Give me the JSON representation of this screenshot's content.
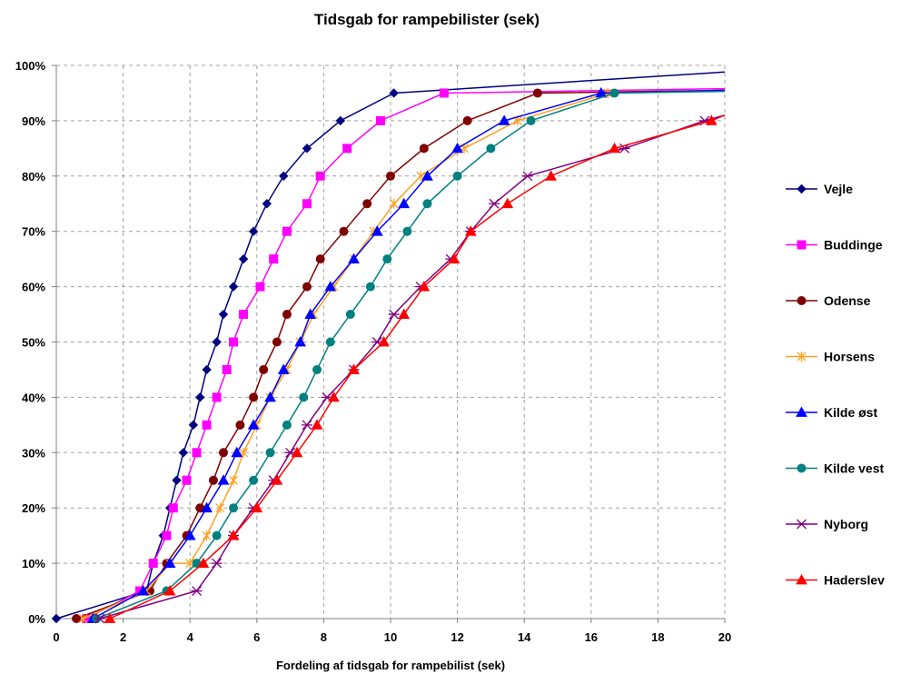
{
  "chart_data": {
    "type": "line",
    "title": "Tidsgab for rampebilister (sek)",
    "xlabel": "Fordeling af tidsgab for rampebilist (sek)",
    "ylabel": "",
    "xlim": [
      0,
      20
    ],
    "ylim": [
      0,
      100
    ],
    "x_ticks": [
      0,
      2,
      4,
      6,
      8,
      10,
      12,
      14,
      16,
      18,
      20
    ],
    "x_tick_labels": [
      "0",
      "2",
      "4",
      "6",
      "8",
      "10",
      "12",
      "14",
      "16",
      "18",
      "20"
    ],
    "y_ticks": [
      0,
      10,
      20,
      30,
      40,
      50,
      60,
      70,
      80,
      90,
      100
    ],
    "y_tick_labels": [
      "0%",
      "10%",
      "20%",
      "30%",
      "40%",
      "50%",
      "60%",
      "70%",
      "80%",
      "90%",
      "100%"
    ],
    "grid": true,
    "legend_position": "right",
    "series": [
      {
        "name": "Vejle",
        "color": "#000080",
        "marker": "diamond",
        "points": [
          [
            0,
            0
          ],
          [
            2.7,
            5
          ],
          [
            2.9,
            10
          ],
          [
            3.2,
            15
          ],
          [
            3.4,
            20
          ],
          [
            3.6,
            25
          ],
          [
            3.8,
            30
          ],
          [
            4.1,
            35
          ],
          [
            4.3,
            40
          ],
          [
            4.5,
            45
          ],
          [
            4.8,
            50
          ],
          [
            5.0,
            55
          ],
          [
            5.3,
            60
          ],
          [
            5.6,
            65
          ],
          [
            5.9,
            70
          ],
          [
            6.3,
            75
          ],
          [
            6.8,
            80
          ],
          [
            7.5,
            85
          ],
          [
            8.5,
            90
          ],
          [
            10.1,
            95
          ],
          [
            20,
            98.8
          ]
        ]
      },
      {
        "name": "Buddinge",
        "color": "#ff00ff",
        "marker": "square",
        "points": [
          [
            0.9,
            0
          ],
          [
            2.5,
            5
          ],
          [
            2.9,
            10
          ],
          [
            3.3,
            15
          ],
          [
            3.5,
            20
          ],
          [
            3.9,
            25
          ],
          [
            4.2,
            30
          ],
          [
            4.5,
            35
          ],
          [
            4.8,
            40
          ],
          [
            5.1,
            45
          ],
          [
            5.3,
            50
          ],
          [
            5.6,
            55
          ],
          [
            6.1,
            60
          ],
          [
            6.5,
            65
          ],
          [
            6.9,
            70
          ],
          [
            7.5,
            75
          ],
          [
            7.9,
            80
          ],
          [
            8.7,
            85
          ],
          [
            9.7,
            90
          ],
          [
            11.6,
            95
          ],
          [
            20,
            95.8
          ]
        ]
      },
      {
        "name": "Odense",
        "color": "#800000",
        "marker": "circle",
        "points": [
          [
            0.6,
            0
          ],
          [
            2.8,
            5
          ],
          [
            3.3,
            10
          ],
          [
            3.9,
            15
          ],
          [
            4.3,
            20
          ],
          [
            4.7,
            25
          ],
          [
            5.0,
            30
          ],
          [
            5.5,
            35
          ],
          [
            5.9,
            40
          ],
          [
            6.2,
            45
          ],
          [
            6.6,
            50
          ],
          [
            6.9,
            55
          ],
          [
            7.5,
            60
          ],
          [
            7.9,
            65
          ],
          [
            8.6,
            70
          ],
          [
            9.3,
            75
          ],
          [
            10.0,
            80
          ],
          [
            11.0,
            85
          ],
          [
            12.3,
            90
          ],
          [
            14.4,
            95
          ],
          [
            20,
            95.5
          ]
        ]
      },
      {
        "name": "Horsens",
        "color": "#ffa020",
        "marker": "star",
        "points": [
          [
            0.8,
            0
          ],
          [
            2.7,
            5
          ],
          [
            3.4,
            10
          ],
          [
            4.0,
            10
          ],
          [
            4.5,
            15
          ],
          [
            4.9,
            20
          ],
          [
            5.3,
            25
          ],
          [
            5.6,
            30
          ],
          [
            6.0,
            35
          ],
          [
            6.4,
            40
          ],
          [
            6.9,
            45
          ],
          [
            7.3,
            50
          ],
          [
            7.7,
            55
          ],
          [
            8.3,
            60
          ],
          [
            8.9,
            65
          ],
          [
            9.5,
            70
          ],
          [
            10.1,
            75
          ],
          [
            10.9,
            80
          ],
          [
            12.2,
            85
          ],
          [
            13.8,
            90
          ],
          [
            16.5,
            95
          ],
          [
            20,
            95.5
          ]
        ]
      },
      {
        "name": "Kilde øst",
        "color": "#0000ff",
        "marker": "triangle",
        "points": [
          [
            1.1,
            0
          ],
          [
            2.6,
            5
          ],
          [
            3.4,
            10
          ],
          [
            4.0,
            15
          ],
          [
            4.5,
            20
          ],
          [
            5.0,
            25
          ],
          [
            5.4,
            30
          ],
          [
            5.9,
            35
          ],
          [
            6.4,
            40
          ],
          [
            6.8,
            45
          ],
          [
            7.3,
            50
          ],
          [
            7.6,
            55
          ],
          [
            8.2,
            60
          ],
          [
            8.9,
            65
          ],
          [
            9.6,
            70
          ],
          [
            10.4,
            75
          ],
          [
            11.1,
            80
          ],
          [
            12.0,
            85
          ],
          [
            13.4,
            90
          ],
          [
            16.3,
            95
          ],
          [
            20,
            95.5
          ]
        ]
      },
      {
        "name": "Kilde vest",
        "color": "#008080",
        "marker": "circle",
        "points": [
          [
            1.2,
            0
          ],
          [
            3.3,
            5
          ],
          [
            4.2,
            10
          ],
          [
            4.8,
            15
          ],
          [
            5.3,
            20
          ],
          [
            5.9,
            25
          ],
          [
            6.4,
            30
          ],
          [
            6.9,
            35
          ],
          [
            7.4,
            40
          ],
          [
            7.8,
            45
          ],
          [
            8.2,
            50
          ],
          [
            8.8,
            55
          ],
          [
            9.4,
            60
          ],
          [
            9.9,
            65
          ],
          [
            10.5,
            70
          ],
          [
            11.1,
            75
          ],
          [
            12.0,
            80
          ],
          [
            13.0,
            85
          ],
          [
            14.2,
            90
          ],
          [
            16.7,
            95
          ],
          [
            20,
            95.3
          ]
        ]
      },
      {
        "name": "Nyborg",
        "color": "#800080",
        "marker": "asterisk",
        "points": [
          [
            1.3,
            0
          ],
          [
            4.2,
            5
          ],
          [
            4.8,
            10
          ],
          [
            5.3,
            15
          ],
          [
            5.9,
            20
          ],
          [
            6.5,
            25
          ],
          [
            7.0,
            30
          ],
          [
            7.5,
            35
          ],
          [
            8.1,
            40
          ],
          [
            8.9,
            45
          ],
          [
            9.6,
            50
          ],
          [
            10.1,
            55
          ],
          [
            10.9,
            60
          ],
          [
            11.8,
            65
          ],
          [
            12.4,
            70
          ],
          [
            13.1,
            75
          ],
          [
            14.1,
            80
          ],
          [
            17.0,
            85
          ],
          [
            19.4,
            90
          ],
          [
            20,
            91
          ]
        ]
      },
      {
        "name": "Haderslev",
        "color": "#ff0000",
        "marker": "triangle",
        "points": [
          [
            1.6,
            0
          ],
          [
            3.4,
            5
          ],
          [
            4.4,
            10
          ],
          [
            5.3,
            15
          ],
          [
            6.0,
            20
          ],
          [
            6.6,
            25
          ],
          [
            7.2,
            30
          ],
          [
            7.8,
            35
          ],
          [
            8.3,
            40
          ],
          [
            8.9,
            45
          ],
          [
            9.8,
            50
          ],
          [
            10.4,
            55
          ],
          [
            11.0,
            60
          ],
          [
            11.9,
            65
          ],
          [
            12.4,
            70
          ],
          [
            13.5,
            75
          ],
          [
            14.8,
            80
          ],
          [
            16.7,
            85
          ],
          [
            19.6,
            90
          ],
          [
            20,
            91
          ]
        ]
      }
    ]
  }
}
